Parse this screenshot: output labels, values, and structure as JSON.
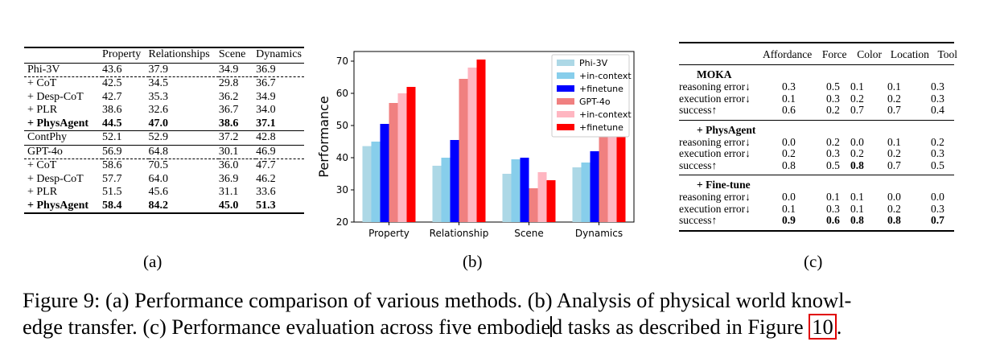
{
  "table_a": {
    "headers": [
      "",
      "Property",
      "Relationships",
      "Scene",
      "Dynamics"
    ],
    "rows": [
      {
        "name": "Phi-3V",
        "values": [
          "43.6",
          "37.9",
          "34.9",
          "36.9"
        ]
      },
      {
        "name": "+ CoT",
        "values": [
          "42.5",
          "34.5",
          "29.8",
          "36.7"
        ]
      },
      {
        "name": "+ Desp-CoT",
        "values": [
          "42.7",
          "35.3",
          "36.2",
          "34.9"
        ]
      },
      {
        "name": "+ PLR",
        "values": [
          "38.6",
          "32.6",
          "36.7",
          "34.0"
        ]
      },
      {
        "name": "+ PhysAgent",
        "values": [
          "44.5",
          "47.0",
          "38.6",
          "37.1"
        ]
      },
      {
        "name": "ContPhy",
        "values": [
          "52.1",
          "52.9",
          "37.2",
          "42.8"
        ]
      },
      {
        "name": "GPT-4o",
        "values": [
          "56.9",
          "64.8",
          "30.1",
          "46.9"
        ]
      },
      {
        "name": "+ CoT",
        "values": [
          "58.6",
          "70.5",
          "36.0",
          "47.7"
        ]
      },
      {
        "name": "+ Desp-CoT",
        "values": [
          "57.7",
          "64.0",
          "36.9",
          "46.2"
        ]
      },
      {
        "name": "+ PLR",
        "values": [
          "51.5",
          "45.6",
          "31.1",
          "33.6"
        ]
      },
      {
        "name": "+ PhysAgent",
        "values": [
          "58.4",
          "84.2",
          "45.0",
          "51.3"
        ]
      }
    ],
    "label": "(a)"
  },
  "chart_label": "(b)",
  "chart_data": {
    "type": "bar",
    "categories": [
      "Property",
      "Relationship",
      "Scene",
      "Dynamics"
    ],
    "ylabel": "Performance",
    "xlabel": "",
    "ylim": [
      20,
      73
    ],
    "yticks": [
      20,
      30,
      40,
      50,
      60,
      70
    ],
    "grid": false,
    "legend_position": "top-right",
    "series": [
      {
        "name": "Phi-3V",
        "color": "#add8e6",
        "values": [
          43.6,
          37.5,
          35.0,
          37.0
        ]
      },
      {
        "name": "+in-context",
        "color": "#87ceeb",
        "values": [
          45.0,
          40.0,
          39.5,
          38.5
        ]
      },
      {
        "name": "+finetune",
        "color": "#0000ff",
        "values": [
          50.5,
          45.5,
          40.0,
          42.0
        ]
      },
      {
        "name": "GPT-4o",
        "color": "#f08080",
        "values": [
          57.0,
          64.5,
          30.5,
          47.0
        ]
      },
      {
        "name": "+in-context",
        "color": "#ffb6c1",
        "values": [
          60.0,
          68.0,
          35.5,
          48.0
        ]
      },
      {
        "name": "+finetune",
        "color": "#ff0000",
        "values": [
          62.0,
          70.5,
          33.0,
          50.0
        ]
      }
    ]
  },
  "table_c": {
    "headers": [
      "Affordance",
      "Force",
      "Color",
      "Location",
      "Tool"
    ],
    "blocks": [
      {
        "title": "MOKA",
        "rows": [
          {
            "name": "reasoning error↓",
            "values": [
              "0.3",
              "0.5",
              "0.1",
              "0.1",
              "0.3"
            ]
          },
          {
            "name": "execution error↓",
            "values": [
              "0.1",
              "0.3",
              "0.2",
              "0.2",
              "0.3"
            ]
          },
          {
            "name": "success↑",
            "values": [
              "0.6",
              "0.2",
              "0.7",
              "0.7",
              "0.4"
            ]
          }
        ]
      },
      {
        "title": "+ PhysAgent",
        "rows": [
          {
            "name": "reasoning error↓",
            "values": [
              "0.0",
              "0.2",
              "0.0",
              "0.1",
              "0.2"
            ]
          },
          {
            "name": "execution error↓",
            "values": [
              "0.2",
              "0.3",
              "0.2",
              "0.2",
              "0.3"
            ]
          },
          {
            "name": "success↑",
            "values": [
              "0.8",
              "0.5",
              "0.8",
              "0.7",
              "0.5"
            ]
          }
        ]
      },
      {
        "title": "+ Fine-tune",
        "rows": [
          {
            "name": "reasoning error↓",
            "values": [
              "0.0",
              "0.1",
              "0.1",
              "0.0",
              "0.0"
            ]
          },
          {
            "name": "execution error↓",
            "values": [
              "0.1",
              "0.3",
              "0.1",
              "0.2",
              "0.3"
            ]
          },
          {
            "name": "success↑",
            "values": [
              "0.9",
              "0.6",
              "0.8",
              "0.8",
              "0.7"
            ]
          }
        ]
      }
    ],
    "label": "(c)"
  },
  "caption": {
    "line1": "Figure 9: (a) Performance comparison of various methods. (b) Analysis of physical world knowl-",
    "line2_part1": "edge transfer. (c) Performance evaluation across five embodie",
    "line2_part2": "d tasks as described in Figure ",
    "figure_ref": "10",
    "line2_end": "."
  }
}
